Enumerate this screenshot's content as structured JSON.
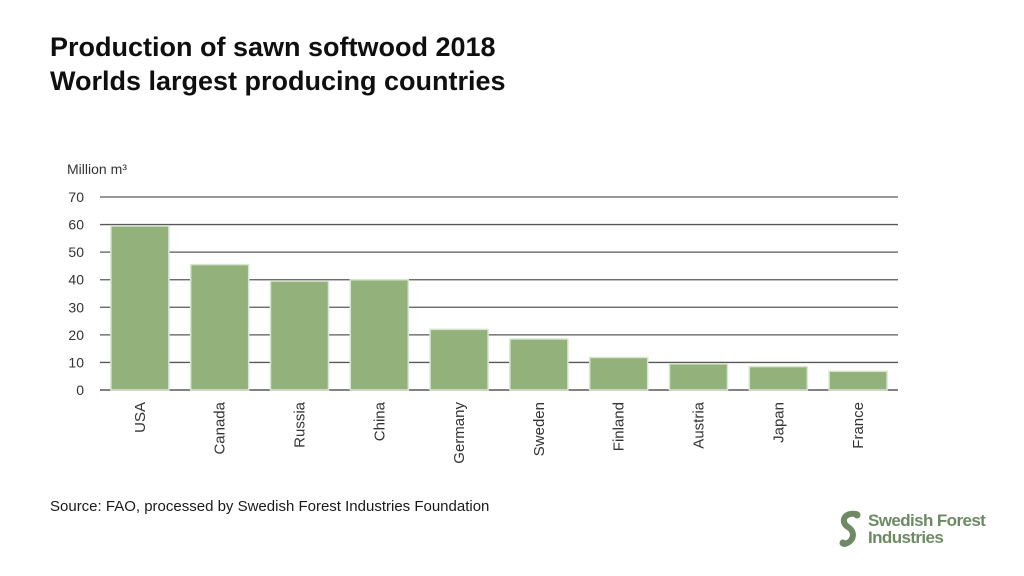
{
  "header": {
    "title_line1": "Production of sawn softwood 2018",
    "title_line2": "Worlds largest producing countries"
  },
  "source": "Source: FAO, processed by Swedish Forest Industries Foundation",
  "logo": {
    "line1": "Swedish Forest",
    "line2": "Industries",
    "color": "#6d8a64"
  },
  "chart_data": {
    "type": "bar",
    "title": "",
    "xlabel": "",
    "ylabel": "Million m³",
    "categories": [
      "USA",
      "Canada",
      "Russia",
      "China",
      "Germany",
      "Sweden",
      "Finland",
      "Austria",
      "Japan",
      "France"
    ],
    "values": [
      59.5,
      45.5,
      39.5,
      40,
      22,
      18.5,
      11.8,
      9.5,
      8.5,
      6.8
    ],
    "ylim": [
      0,
      70
    ],
    "yticks": [
      0,
      10,
      20,
      30,
      40,
      50,
      60,
      70
    ],
    "grid": true,
    "bar_color": "#93b27b",
    "grid_color": "#595959"
  }
}
